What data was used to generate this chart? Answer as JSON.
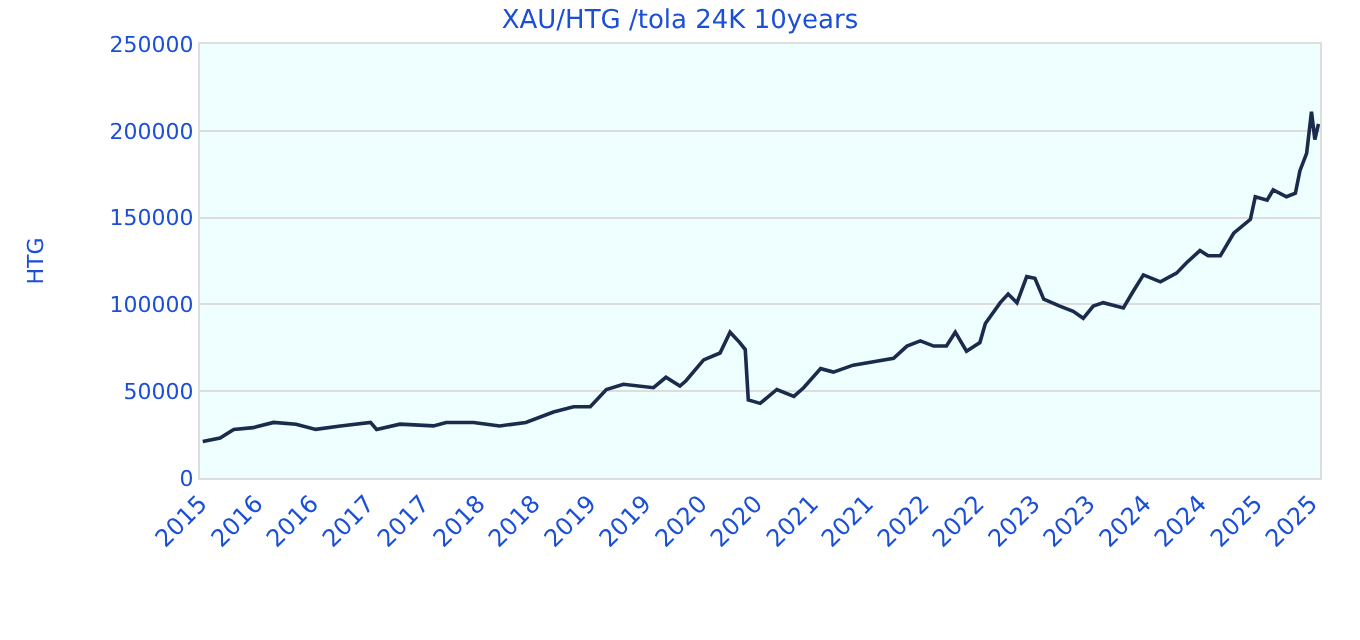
{
  "chart_data": {
    "type": "line",
    "title": "XAU/HTG /tola 24K 10years",
    "ylabel": "HTG",
    "x": [
      "2015-07-10",
      "2015-09-05",
      "2015-10-20",
      "2015-12-23",
      "2016-02-28",
      "2016-05-12",
      "2016-07-16",
      "2016-10-05",
      "2017-01-12",
      "2017-02-01",
      "2017-04-19",
      "2017-08-07",
      "2017-09-18",
      "2017-12-17",
      "2018-03-13",
      "2018-06-07",
      "2018-09-06",
      "2018-11-11",
      "2019-01-05",
      "2019-02-27",
      "2019-04-24",
      "2019-08-01",
      "2019-09-11",
      "2019-10-27",
      "2019-11-16",
      "2020-01-13",
      "2020-03-07",
      "2020-04-09",
      "2020-05-11",
      "2020-05-29",
      "2020-06-08",
      "2020-07-17",
      "2020-09-10",
      "2020-11-05",
      "2020-12-07",
      "2021-02-01",
      "2021-03-15",
      "2021-05-19",
      "2021-07-25",
      "2021-09-29",
      "2021-11-12",
      "2021-12-26",
      "2022-02-08",
      "2022-03-22",
      "2022-04-20",
      "2022-05-27",
      "2022-07-10",
      "2022-07-28",
      "2022-09-15",
      "2022-10-11",
      "2022-11-09",
      "2022-12-11",
      "2023-01-07",
      "2023-02-05",
      "2023-03-30",
      "2023-05-13",
      "2023-06-15",
      "2023-07-18",
      "2023-08-20",
      "2023-10-25",
      "2023-11-28",
      "2023-12-30",
      "2024-02-24",
      "2024-04-17",
      "2024-05-20",
      "2024-07-03",
      "2024-07-30",
      "2024-09-08",
      "2024-10-22",
      "2024-12-16",
      "2025-01-01",
      "2025-02-09",
      "2025-03-01",
      "2025-04-14",
      "2025-05-13",
      "2025-05-28",
      "2025-06-19",
      "2025-07-05",
      "2025-07-16",
      "2025-07-28"
    ],
    "series": [
      {
        "color": "#1a2b4c",
        "values": [
          21000,
          23000,
          28000,
          29000,
          32000,
          31000,
          28000,
          30000,
          32000,
          28000,
          31000,
          30000,
          32000,
          32000,
          30000,
          32000,
          38000,
          41000,
          41000,
          51000,
          54000,
          52000,
          58000,
          53000,
          56000,
          68000,
          72000,
          84000,
          78000,
          74000,
          45000,
          43000,
          51000,
          47000,
          52000,
          63000,
          61000,
          65000,
          67000,
          69000,
          76000,
          79000,
          76000,
          76000,
          84000,
          73000,
          78000,
          89000,
          101000,
          106000,
          101000,
          116000,
          115000,
          103000,
          99000,
          96000,
          92000,
          99000,
          101000,
          98000,
          108000,
          117000,
          113000,
          118000,
          124000,
          131000,
          128000,
          128000,
          141000,
          149000,
          162000,
          160000,
          166000,
          162000,
          164000,
          177000,
          187000,
          211000,
          195000,
          204000
        ]
      }
    ],
    "xlim": [
      "2015-07-01",
      "2025-08-02"
    ],
    "xticks": [
      {
        "value": "2015-07-01",
        "label": "2015"
      },
      {
        "value": "2016-01-01",
        "label": "2016"
      },
      {
        "value": "2016-07-01",
        "label": "2016"
      },
      {
        "value": "2017-01-01",
        "label": "2017"
      },
      {
        "value": "2017-07-01",
        "label": "2017"
      },
      {
        "value": "2018-01-01",
        "label": "2018"
      },
      {
        "value": "2018-07-01",
        "label": "2018"
      },
      {
        "value": "2019-01-01",
        "label": "2019"
      },
      {
        "value": "2019-07-01",
        "label": "2019"
      },
      {
        "value": "2020-01-01",
        "label": "2020"
      },
      {
        "value": "2020-07-01",
        "label": "2020"
      },
      {
        "value": "2021-01-01",
        "label": "2021"
      },
      {
        "value": "2021-07-01",
        "label": "2021"
      },
      {
        "value": "2022-01-01",
        "label": "2022"
      },
      {
        "value": "2022-07-01",
        "label": "2022"
      },
      {
        "value": "2023-01-01",
        "label": "2023"
      },
      {
        "value": "2023-07-01",
        "label": "2023"
      },
      {
        "value": "2024-01-01",
        "label": "2024"
      },
      {
        "value": "2024-07-01",
        "label": "2024"
      },
      {
        "value": "2025-01-01",
        "label": "2025"
      },
      {
        "value": "2025-07-01",
        "label": "2025"
      }
    ],
    "ylim": [
      0,
      250000
    ],
    "yticks": [
      0,
      50000,
      100000,
      150000,
      200000,
      250000
    ],
    "grid": "y",
    "marker": "none",
    "line_style": "solid"
  }
}
